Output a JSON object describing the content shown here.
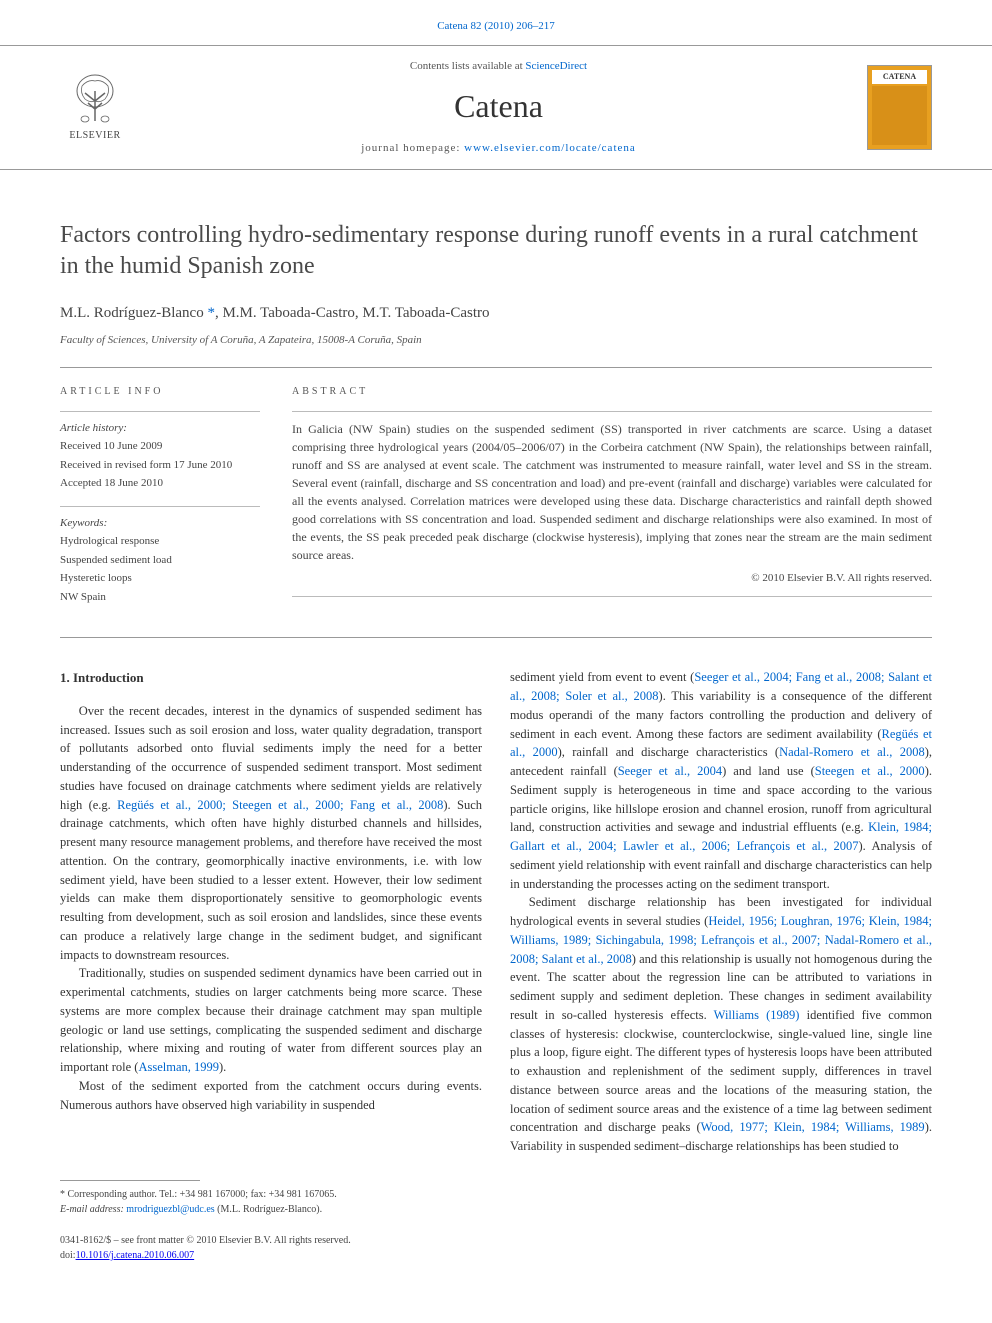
{
  "meta": {
    "citation": "Catena 82 (2010) 206–217",
    "contents_prefix": "Contents lists available at ",
    "contents_link": "ScienceDirect",
    "journal_name": "Catena",
    "homepage_prefix": "journal homepage: ",
    "homepage_url": "www.elsevier.com/locate/catena",
    "publisher": "ELSEVIER",
    "cover_label": "CATENA"
  },
  "title": "Factors controlling hydro-sedimentary response during runoff events in a rural catchment in the humid Spanish zone",
  "authors_html": "M.L. Rodríguez-Blanco <span class='corr'>*</span>, M.M. Taboada-Castro, M.T. Taboada-Castro",
  "affiliation": "Faculty of Sciences, University of A Coruña, A Zapateira, 15008-A Coruña, Spain",
  "article_info": {
    "heading": "ARTICLE INFO",
    "history_label": "Article history:",
    "received": "Received 10 June 2009",
    "revised": "Received in revised form 17 June 2010",
    "accepted": "Accepted 18 June 2010",
    "keywords_label": "Keywords:",
    "keywords": [
      "Hydrological response",
      "Suspended sediment load",
      "Hysteretic loops",
      "NW Spain"
    ]
  },
  "abstract": {
    "heading": "ABSTRACT",
    "text": "In Galicia (NW Spain) studies on the suspended sediment (SS) transported in river catchments are scarce. Using a dataset comprising three hydrological years (2004/05–2006/07) in the Corbeira catchment (NW Spain), the relationships between rainfall, runoff and SS are analysed at event scale. The catchment was instrumented to measure rainfall, water level and SS in the stream. Several event (rainfall, discharge and SS concentration and load) and pre-event (rainfall and discharge) variables were calculated for all the events analysed. Correlation matrices were developed using these data. Discharge characteristics and rainfall depth showed good correlations with SS concentration and load. Suspended sediment and discharge relationships were also examined. In most of the events, the SS peak preceded peak discharge (clockwise hysteresis), implying that zones near the stream are the main sediment source areas.",
    "copyright": "© 2010 Elsevier B.V. All rights reserved."
  },
  "body": {
    "section_heading": "1. Introduction",
    "col1_p1": "Over the recent decades, interest in the dynamics of suspended sediment has increased. Issues such as soil erosion and loss, water quality degradation, transport of pollutants adsorbed onto fluvial sediments imply the need for a better understanding of the occurrence of suspended sediment transport. Most sediment studies have focused on drainage catchments where sediment yields are relatively high (e.g. <span class='cite'>Regüés et al., 2000; Steegen et al., 2000; Fang et al., 2008</span>). Such drainage catchments, which often have highly disturbed channels and hillsides, present many resource management problems, and therefore have received the most attention. On the contrary, geomorphically inactive environments, i.e. with low sediment yield, have been studied to a lesser extent. However, their low sediment yields can make them disproportionately sensitive to geomorphologic events resulting from development, such as soil erosion and landslides, since these events can produce a relatively large change in the sediment budget, and significant impacts to downstream resources.",
    "col1_p2": "Traditionally, studies on suspended sediment dynamics have been carried out in experimental catchments, studies on larger catchments being more scarce. These systems are more complex because their drainage catchment may span multiple geologic or land use settings, complicating the suspended sediment and discharge relationship, where mixing and routing of water from different sources play an important role (<span class='cite'>Asselman, 1999</span>).",
    "col1_p3": "Most of the sediment exported from the catchment occurs during events. Numerous authors have observed high variability in suspended",
    "col2_p1": "sediment yield from event to event (<span class='cite'>Seeger et al., 2004; Fang et al., 2008; Salant et al., 2008; Soler et al., 2008</span>). This variability is a consequence of the different modus operandi of the many factors controlling the production and delivery of sediment in each event. Among these factors are sediment availability (<span class='cite'>Regüés et al., 2000</span>), rainfall and discharge characteristics (<span class='cite'>Nadal-Romero et al., 2008</span>), antecedent rainfall (<span class='cite'>Seeger et al., 2004</span>) and land use (<span class='cite'>Steegen et al., 2000</span>). Sediment supply is heterogeneous in time and space according to the various particle origins, like hillslope erosion and channel erosion, runoff from agricultural land, construction activities and sewage and industrial effluents (e.g. <span class='cite'>Klein, 1984; Gallart et al., 2004; Lawler et al., 2006; Lefrançois et al., 2007</span>). Analysis of sediment yield relationship with event rainfall and discharge characteristics can help in understanding the processes acting on the sediment transport.",
    "col2_p2": "Sediment discharge relationship has been investigated for individual hydrological events in several studies (<span class='cite'>Heidel, 1956; Loughran, 1976; Klein, 1984; Williams, 1989; Sichingabula, 1998; Lefrançois et al., 2007; Nadal-Romero et al., 2008; Salant et al., 2008</span>) and this relationship is usually not homogenous during the event. The scatter about the regression line can be attributed to variations in sediment supply and sediment depletion. These changes in sediment availability result in so-called hysteresis effects. <span class='cite'>Williams (1989)</span> identified five common classes of hysteresis: clockwise, counterclockwise, single-valued line, single line plus a loop, figure eight. The different types of hysteresis loops have been attributed to exhaustion and replenishment of the sediment supply, differences in travel distance between source areas and the locations of the measuring station, the location of sediment source areas and the existence of a time lag between sediment concentration and discharge peaks (<span class='cite'>Wood, 1977; Klein, 1984; Williams, 1989</span>). Variability in suspended sediment–discharge relationships has been studied to"
  },
  "footer": {
    "corr_label": "* Corresponding author. Tel.: +34 981 167000; fax: +34 981 167065.",
    "email_label": "E-mail address: ",
    "email": "mrodriguezbl@udc.es",
    "email_suffix": " (M.L. Rodríguez-Blanco).",
    "issn_line": "0341-8162/$ – see front matter © 2010 Elsevier B.V. All rights reserved.",
    "doi_label": "doi:",
    "doi": "10.1016/j.catena.2010.06.007"
  },
  "colors": {
    "link": "#0066cc",
    "text": "#333333",
    "muted": "#555555",
    "border": "#999999",
    "cover_bg": "#e8a020"
  }
}
